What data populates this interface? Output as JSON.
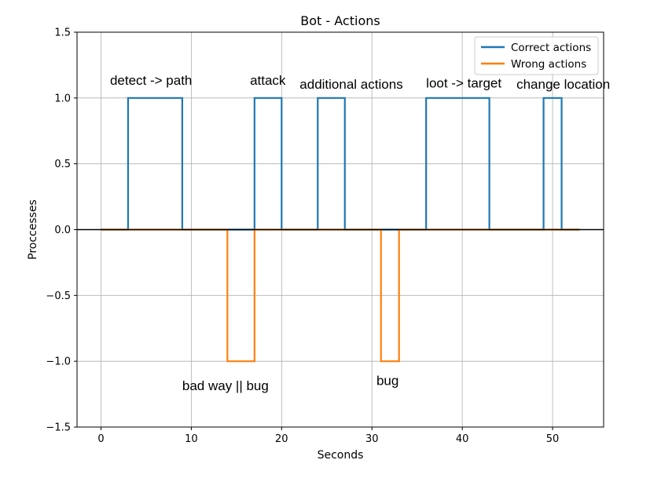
{
  "chart_data": {
    "type": "line",
    "step": true,
    "title": "Bot - Actions",
    "xlabel": "Seconds",
    "ylabel": "Proccesses",
    "xlim": [
      -2.65,
      55.65
    ],
    "ylim": [
      -1.5,
      1.5
    ],
    "xticks": [
      0,
      10,
      20,
      30,
      40,
      50
    ],
    "yticks": [
      -1.5,
      -1.0,
      -0.5,
      0.0,
      0.5,
      1.0,
      1.5
    ],
    "ytick_labels": [
      "−1.5",
      "−1.0",
      "−0.5",
      "0.0",
      "0.5",
      "1.0",
      "1.5"
    ],
    "grid": true,
    "legend_position": "top-right",
    "series": [
      {
        "name": "Correct actions",
        "color": "#1f77b4",
        "points": [
          [
            0,
            0
          ],
          [
            3,
            0
          ],
          [
            3,
            1
          ],
          [
            9,
            1
          ],
          [
            9,
            0
          ],
          [
            17,
            0
          ],
          [
            17,
            1
          ],
          [
            20,
            1
          ],
          [
            20,
            0
          ],
          [
            24,
            0
          ],
          [
            24,
            1
          ],
          [
            27,
            1
          ],
          [
            27,
            0
          ],
          [
            36,
            0
          ],
          [
            36,
            1
          ],
          [
            43,
            1
          ],
          [
            43,
            0
          ],
          [
            49,
            0
          ],
          [
            49,
            1
          ],
          [
            51,
            1
          ],
          [
            51,
            0
          ],
          [
            53,
            0
          ]
        ]
      },
      {
        "name": "Wrong actions",
        "color": "#ff7f0e",
        "points": [
          [
            0,
            0
          ],
          [
            14,
            0
          ],
          [
            14,
            -1
          ],
          [
            17,
            -1
          ],
          [
            17,
            0
          ],
          [
            31,
            0
          ],
          [
            31,
            -1
          ],
          [
            33,
            -1
          ],
          [
            33,
            0
          ],
          [
            53,
            0
          ]
        ]
      }
    ],
    "annotations": [
      {
        "text": "detect -> path",
        "x": 1,
        "y": 1.1
      },
      {
        "text": "attack",
        "x": 16.5,
        "y": 1.1
      },
      {
        "text": "additional actions",
        "x": 22,
        "y": 1.07
      },
      {
        "text": "loot -> target",
        "x": 36,
        "y": 1.08
      },
      {
        "text": "change location",
        "x": 46,
        "y": 1.07
      },
      {
        "text": "bad way || bug",
        "x": 9,
        "y": -1.22
      },
      {
        "text": "bug",
        "x": 30.5,
        "y": -1.18
      }
    ],
    "hline": {
      "y": 0,
      "color": "#000000"
    }
  }
}
